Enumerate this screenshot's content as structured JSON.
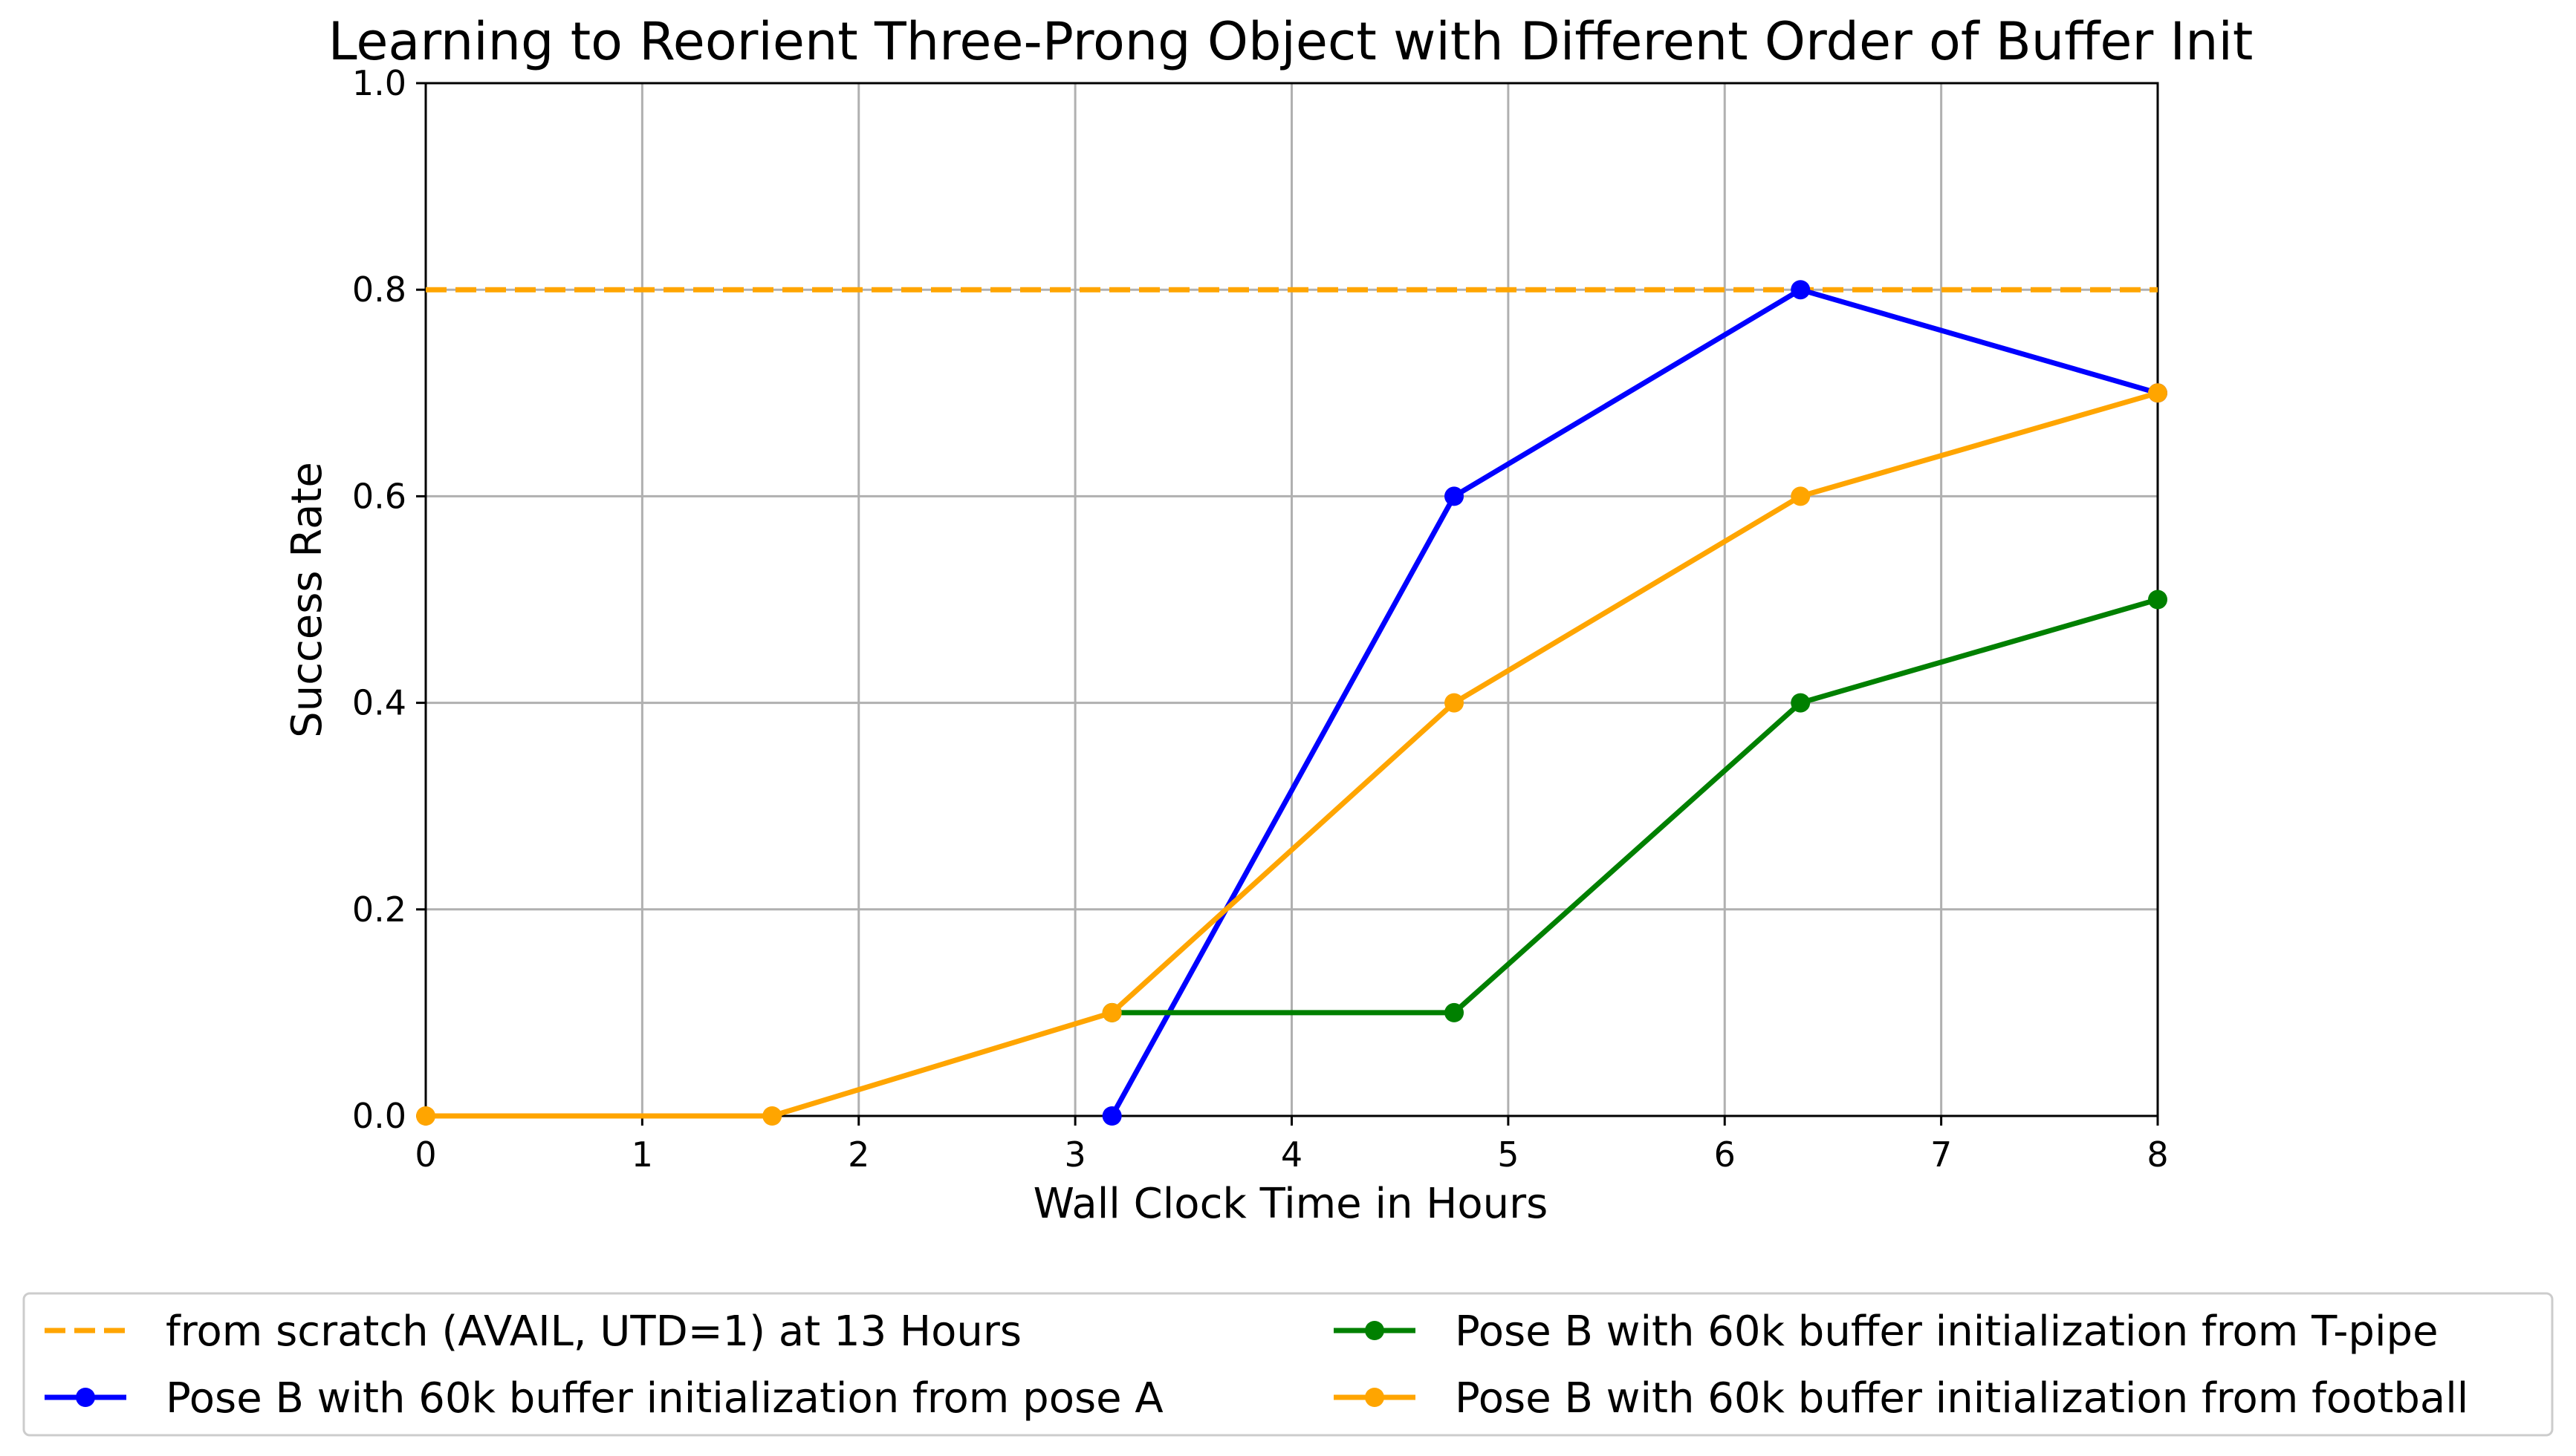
{
  "chart_data": {
    "type": "line",
    "title": "Learning to Reorient Three-Prong Object with Different Order of Buffer Init",
    "xlabel": "Wall Clock Time in Hours",
    "ylabel": "Success Rate",
    "xlim": [
      0,
      8
    ],
    "ylim": [
      0,
      1.0
    ],
    "xticks": [
      "0",
      "1",
      "2",
      "3",
      "4",
      "5",
      "6",
      "7",
      "8"
    ],
    "yticks": [
      "0.0",
      "0.2",
      "0.4",
      "0.6",
      "0.8",
      "1.0"
    ],
    "grid": true,
    "legend_position": "below",
    "series": [
      {
        "name": "from scratch (AVAIL, UTD=1) at 13 Hours",
        "color": "#FFA500",
        "style": "dashed",
        "markers": false,
        "x": [
          0,
          8
        ],
        "y": [
          0.8,
          0.8
        ]
      },
      {
        "name": "Pose B with 60k buffer initialization from pose A",
        "color": "#0000FF",
        "style": "solid",
        "markers": true,
        "x": [
          3.17,
          4.75,
          6.35,
          8.0
        ],
        "y": [
          0.0,
          0.6,
          0.8,
          0.7
        ]
      },
      {
        "name": "Pose B with 60k buffer initialization from T-pipe",
        "color": "#008000",
        "style": "solid",
        "markers": true,
        "x": [
          3.17,
          4.75,
          6.35,
          8.0
        ],
        "y": [
          0.1,
          0.1,
          0.4,
          0.5
        ]
      },
      {
        "name": "Pose B with 60k buffer initialization from football",
        "color": "#FFA500",
        "style": "solid",
        "markers": true,
        "x": [
          0.0,
          1.6,
          3.17,
          4.75,
          6.35,
          8.0
        ],
        "y": [
          0.0,
          0.0,
          0.1,
          0.4,
          0.6,
          0.7
        ]
      }
    ]
  }
}
